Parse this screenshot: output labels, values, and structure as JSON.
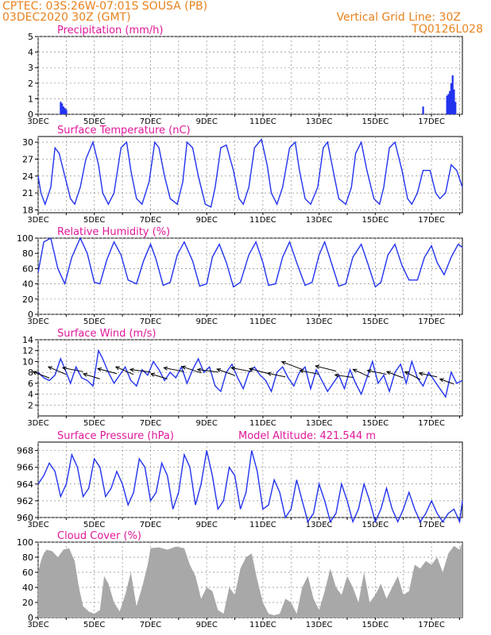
{
  "header": {
    "line1_left": "CPTEC:   03S:26W-07:01S   SOUSA (PB)",
    "line2_left": "03DEC2020 30Z (GMT)",
    "line1_right": "Vertical Grid Line: 30Z",
    "line2_right": "TQ0126L028"
  },
  "colors": {
    "line": "#2233ee",
    "bar_precip": "#2233ee",
    "cloud": "#a8a8a8",
    "title": "#e0189a",
    "header": "#e8821e",
    "grid": "#888888"
  },
  "x_tick_labels": [
    "3DEC",
    "5DEC",
    "7DEC",
    "9DEC",
    "11DEC",
    "13DEC",
    "15DEC",
    "17DEC"
  ],
  "x_tick_days": [
    3,
    5,
    7,
    9,
    11,
    13,
    15,
    17
  ],
  "x_range_days": [
    3,
    18.1
  ],
  "model_altitude": "Model Altitude: 421.544 m",
  "chart_data": [
    {
      "id": "precip",
      "type": "bar",
      "title": "Precipitation (mm/h)",
      "ylim": [
        0,
        5
      ],
      "yticks": [
        0,
        1,
        2,
        3,
        4,
        5
      ],
      "x": [
        3.8,
        3.85,
        3.9,
        3.95,
        4.0,
        16.7,
        17.55,
        17.6,
        17.65,
        17.7,
        17.75,
        17.8,
        17.85
      ],
      "values": [
        0.8,
        0.7,
        0.5,
        0.4,
        0.3,
        0.5,
        1.2,
        1.3,
        1.5,
        2.0,
        2.5,
        1.6,
        0.8
      ]
    },
    {
      "id": "temp",
      "type": "line",
      "title": "Surface Temperature (nC)",
      "ylim": [
        17.5,
        31
      ],
      "yticks": [
        18,
        21,
        24,
        27,
        30
      ],
      "x": [
        3.0,
        3.1,
        3.25,
        3.45,
        3.6,
        3.75,
        3.95,
        4.15,
        4.3,
        4.5,
        4.7,
        4.95,
        5.15,
        5.3,
        5.5,
        5.7,
        5.95,
        6.15,
        6.3,
        6.5,
        6.7,
        6.95,
        7.15,
        7.3,
        7.5,
        7.7,
        7.95,
        8.15,
        8.3,
        8.5,
        8.7,
        8.95,
        9.15,
        9.3,
        9.5,
        9.7,
        9.95,
        10.15,
        10.3,
        10.5,
        10.7,
        10.95,
        11.15,
        11.3,
        11.5,
        11.7,
        11.95,
        12.15,
        12.3,
        12.5,
        12.7,
        12.95,
        13.15,
        13.3,
        13.5,
        13.7,
        13.95,
        14.15,
        14.3,
        14.5,
        14.7,
        14.95,
        15.15,
        15.3,
        15.5,
        15.7,
        15.95,
        16.15,
        16.3,
        16.5,
        16.7,
        16.95,
        17.15,
        17.3,
        17.5,
        17.7,
        17.9,
        18.1
      ],
      "values": [
        24,
        21,
        19,
        22,
        29,
        28,
        24,
        20,
        19,
        22,
        27,
        30,
        26,
        21,
        19,
        21,
        29,
        30,
        25,
        20,
        19,
        23,
        30,
        29,
        24,
        20,
        19,
        23,
        30,
        29,
        24,
        19,
        18.5,
        22,
        29,
        29.5,
        25,
        20,
        19,
        22,
        29,
        30.5,
        26,
        21,
        19,
        22,
        29,
        30,
        25,
        20,
        19,
        22,
        29,
        30,
        25,
        20,
        19,
        22,
        28,
        30,
        25,
        20,
        19,
        22,
        29,
        30,
        25,
        20,
        19,
        21,
        25,
        25,
        21,
        20,
        21,
        26,
        25,
        22
      ]
    },
    {
      "id": "rh",
      "type": "line",
      "title": "Relative Humidity (%)",
      "ylim": [
        0,
        100
      ],
      "yticks": [
        0,
        20,
        40,
        60,
        80,
        100
      ],
      "x": [
        3.0,
        3.2,
        3.45,
        3.7,
        3.95,
        4.2,
        4.5,
        4.75,
        5.0,
        5.2,
        5.45,
        5.7,
        5.95,
        6.2,
        6.5,
        6.75,
        7.0,
        7.2,
        7.45,
        7.7,
        7.95,
        8.2,
        8.5,
        8.75,
        9.0,
        9.2,
        9.45,
        9.7,
        9.95,
        10.2,
        10.5,
        10.75,
        11.0,
        11.2,
        11.45,
        11.7,
        11.95,
        12.2,
        12.5,
        12.75,
        13.0,
        13.2,
        13.45,
        13.7,
        13.95,
        14.2,
        14.5,
        14.75,
        15.0,
        15.2,
        15.45,
        15.7,
        15.95,
        16.2,
        16.5,
        16.75,
        17.0,
        17.2,
        17.45,
        17.7,
        17.95,
        18.1
      ],
      "values": [
        55,
        95,
        100,
        60,
        40,
        75,
        100,
        80,
        42,
        40,
        72,
        95,
        78,
        45,
        40,
        70,
        92,
        72,
        38,
        42,
        78,
        95,
        70,
        37,
        40,
        75,
        92,
        68,
        36,
        42,
        78,
        95,
        68,
        38,
        40,
        75,
        95,
        68,
        38,
        42,
        78,
        95,
        66,
        37,
        40,
        75,
        92,
        65,
        36,
        42,
        78,
        92,
        64,
        45,
        45,
        75,
        90,
        68,
        52,
        75,
        92,
        88
      ]
    },
    {
      "id": "wind",
      "type": "line",
      "title": "Surface Wind (m/s)",
      "ylim": [
        0,
        14
      ],
      "yticks": [
        2,
        4,
        6,
        8,
        10,
        12,
        14
      ],
      "x": [
        3.0,
        3.2,
        3.4,
        3.6,
        3.8,
        4.0,
        4.15,
        4.35,
        4.55,
        4.75,
        4.95,
        5.15,
        5.3,
        5.5,
        5.7,
        5.9,
        6.1,
        6.3,
        6.5,
        6.7,
        6.9,
        7.1,
        7.3,
        7.5,
        7.7,
        7.9,
        8.1,
        8.3,
        8.5,
        8.7,
        8.9,
        9.1,
        9.3,
        9.5,
        9.7,
        9.9,
        10.1,
        10.3,
        10.5,
        10.7,
        10.9,
        11.1,
        11.3,
        11.5,
        11.7,
        11.9,
        12.1,
        12.3,
        12.5,
        12.7,
        12.9,
        13.1,
        13.3,
        13.5,
        13.7,
        13.9,
        14.1,
        14.3,
        14.5,
        14.7,
        14.9,
        15.1,
        15.3,
        15.5,
        15.7,
        15.9,
        16.1,
        16.3,
        16.5,
        16.7,
        16.9,
        17.1,
        17.3,
        17.5,
        17.7,
        17.9,
        18.1
      ],
      "values": [
        8,
        7,
        6.5,
        7.5,
        10.5,
        8,
        6,
        9,
        7,
        6.5,
        5.5,
        12,
        10.5,
        8,
        6,
        7.5,
        9,
        6.5,
        5.5,
        8.5,
        7.5,
        10,
        8.5,
        6.5,
        8,
        7,
        9,
        6,
        8.5,
        10.5,
        8,
        9,
        5.5,
        4.5,
        8,
        9.5,
        7,
        5,
        8,
        9,
        7.5,
        6.5,
        4.5,
        8,
        9,
        7,
        5.5,
        8,
        9,
        5,
        8.5,
        6.5,
        4.5,
        6,
        7.5,
        5,
        8.5,
        6,
        4,
        7,
        10,
        6,
        7.5,
        4.5,
        8,
        9.5,
        6,
        10,
        7,
        5.5,
        8,
        6.5,
        5,
        3.5,
        8,
        6,
        6.5
      ],
      "arrows": [
        {
          "day": 3.4,
          "u": -6.5,
          "v": 2.5
        },
        {
          "day": 4.0,
          "u": -7,
          "v": 3
        },
        {
          "day": 4.6,
          "u": -8,
          "v": 1.5
        },
        {
          "day": 5.2,
          "u": -6.5,
          "v": 2
        },
        {
          "day": 5.8,
          "u": -7.5,
          "v": 2
        },
        {
          "day": 6.4,
          "u": -7,
          "v": 3
        },
        {
          "day": 7.0,
          "u": -8,
          "v": 1
        },
        {
          "day": 7.6,
          "u": -6.5,
          "v": 2
        },
        {
          "day": 8.2,
          "u": -8,
          "v": 1.5
        },
        {
          "day": 8.8,
          "u": -7.5,
          "v": 2.5
        },
        {
          "day": 9.4,
          "u": -8,
          "v": 1
        },
        {
          "day": 10.0,
          "u": -7,
          "v": 2.5
        },
        {
          "day": 10.6,
          "u": -8,
          "v": 1.5
        },
        {
          "day": 11.2,
          "u": -7.5,
          "v": 2
        },
        {
          "day": 11.8,
          "u": -7,
          "v": 1.5
        },
        {
          "day": 12.4,
          "u": -8,
          "v": 3
        },
        {
          "day": 13.0,
          "u": -7.5,
          "v": 1.5
        },
        {
          "day": 13.6,
          "u": -8,
          "v": 2
        },
        {
          "day": 14.2,
          "u": -7,
          "v": 1
        },
        {
          "day": 14.8,
          "u": -6.5,
          "v": 3
        },
        {
          "day": 15.4,
          "u": -7.5,
          "v": 1.5
        },
        {
          "day": 16.0,
          "u": -6.5,
          "v": 2.5
        },
        {
          "day": 16.6,
          "u": -6,
          "v": 3
        },
        {
          "day": 17.2,
          "u": -7,
          "v": 1.5
        },
        {
          "day": 17.8,
          "u": -5.5,
          "v": 2
        }
      ]
    },
    {
      "id": "pressure",
      "type": "line",
      "title": "Surface Pressure (hPa)",
      "ylim": [
        960,
        969
      ],
      "yticks": [
        960,
        962,
        964,
        966,
        968
      ],
      "x": [
        3.0,
        3.2,
        3.4,
        3.6,
        3.8,
        4.0,
        4.2,
        4.4,
        4.6,
        4.8,
        5.0,
        5.2,
        5.4,
        5.6,
        5.8,
        6.0,
        6.2,
        6.4,
        6.6,
        6.8,
        7.0,
        7.2,
        7.4,
        7.6,
        7.8,
        8.0,
        8.2,
        8.4,
        8.6,
        8.8,
        9.0,
        9.2,
        9.4,
        9.6,
        9.8,
        10.0,
        10.2,
        10.4,
        10.6,
        10.8,
        11.0,
        11.2,
        11.4,
        11.6,
        11.8,
        12.0,
        12.2,
        12.4,
        12.6,
        12.8,
        13.0,
        13.2,
        13.4,
        13.6,
        13.8,
        14.0,
        14.2,
        14.4,
        14.6,
        14.8,
        15.0,
        15.2,
        15.4,
        15.6,
        15.8,
        16.0,
        16.2,
        16.4,
        16.6,
        16.8,
        17.0,
        17.2,
        17.4,
        17.6,
        17.8,
        18.0,
        18.1
      ],
      "values": [
        964,
        965,
        966.5,
        965.5,
        962.5,
        964,
        967.5,
        966,
        962.5,
        963.5,
        967,
        966,
        962.5,
        963.5,
        965.5,
        964,
        961.5,
        963,
        967,
        966,
        962,
        963,
        966.5,
        965,
        961,
        963,
        967.5,
        966,
        961.5,
        964,
        968,
        965,
        961,
        962,
        966,
        965,
        961,
        963,
        968,
        965.5,
        961,
        961.5,
        964.5,
        963,
        960,
        961,
        964.5,
        962,
        959.5,
        960.5,
        964,
        962,
        959.5,
        960.5,
        964,
        962,
        959.5,
        961,
        964,
        962,
        959.5,
        961,
        963.5,
        961,
        959.5,
        961,
        963,
        961,
        959.5,
        960.5,
        962,
        960.5,
        959.5,
        960.5,
        961,
        959.5,
        962
      ]
    },
    {
      "id": "cloud",
      "type": "area",
      "title": "Cloud Cover (%)",
      "ylim": [
        0,
        100
      ],
      "yticks": [
        0,
        20,
        40,
        60,
        80,
        100
      ],
      "x": [
        3.0,
        3.1,
        3.2,
        3.3,
        3.5,
        3.7,
        3.9,
        4.1,
        4.3,
        4.45,
        4.6,
        4.8,
        5.0,
        5.2,
        5.35,
        5.5,
        5.7,
        5.9,
        6.1,
        6.3,
        6.5,
        6.7,
        6.9,
        7.0,
        7.3,
        7.6,
        7.9,
        8.2,
        8.4,
        8.6,
        8.8,
        9.0,
        9.2,
        9.4,
        9.6,
        9.8,
        10.0,
        10.2,
        10.4,
        10.6,
        10.8,
        11.0,
        11.2,
        11.4,
        11.6,
        11.8,
        12.0,
        12.2,
        12.4,
        12.6,
        12.8,
        13.0,
        13.2,
        13.4,
        13.6,
        13.8,
        14.0,
        14.2,
        14.4,
        14.6,
        14.8,
        15.0,
        15.2,
        15.4,
        15.6,
        15.8,
        16.0,
        16.2,
        16.4,
        16.6,
        16.8,
        17.0,
        17.2,
        17.4,
        17.6,
        17.8,
        18.0,
        18.1
      ],
      "values": [
        60,
        75,
        85,
        90,
        88,
        80,
        90,
        92,
        75,
        40,
        15,
        8,
        5,
        10,
        55,
        45,
        20,
        8,
        30,
        60,
        15,
        40,
        70,
        92,
        93,
        90,
        94,
        92,
        70,
        55,
        25,
        40,
        35,
        10,
        5,
        40,
        30,
        65,
        80,
        85,
        50,
        20,
        5,
        3,
        5,
        25,
        20,
        5,
        40,
        55,
        25,
        10,
        35,
        65,
        40,
        30,
        55,
        40,
        20,
        60,
        20,
        30,
        45,
        25,
        40,
        55,
        30,
        35,
        70,
        65,
        75,
        70,
        80,
        60,
        85,
        95,
        90,
        100
      ]
    }
  ]
}
